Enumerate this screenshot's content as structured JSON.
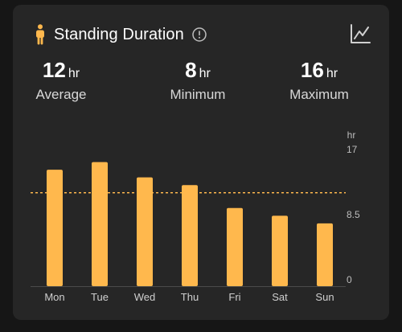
{
  "header": {
    "title": "Standing Duration",
    "person_icon": "person-standing-icon",
    "info_icon": "info-circle-icon",
    "trend_icon": "line-chart-icon"
  },
  "stats": [
    {
      "value": "12",
      "unit": "hr",
      "label": "Average"
    },
    {
      "value": "8",
      "unit": "hr",
      "label": "Minimum"
    },
    {
      "value": "16",
      "unit": "hr",
      "label": "Maximum"
    }
  ],
  "colors": {
    "accent": "#ffb84d",
    "background": "#262626",
    "text": "#ffffff",
    "muted": "#cfcfcf"
  },
  "chart_data": {
    "type": "bar",
    "categories": [
      "Mon",
      "Tue",
      "Wed",
      "Thu",
      "Fri",
      "Sat",
      "Sun"
    ],
    "values": [
      15.2,
      16.2,
      14.2,
      13.2,
      10.2,
      9.2,
      8.2
    ],
    "ylabel": "hr",
    "ylim": [
      0,
      17
    ],
    "yticks": [
      "17",
      "8.5",
      "0"
    ],
    "yticks_values": [
      17,
      8.5,
      0
    ],
    "reference_line": {
      "value": 12.2,
      "style": "dashed"
    },
    "grid": false
  }
}
